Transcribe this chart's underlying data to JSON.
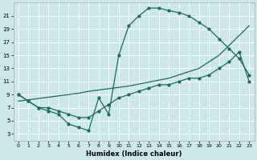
{
  "xlabel": "Humidex (Indice chaleur)",
  "bg_color": "#cce8e8",
  "grid_color": "#ffffff",
  "line_color": "#1a6b60",
  "xlim": [
    -0.5,
    23.5
  ],
  "ylim": [
    2,
    23
  ],
  "xticks": [
    0,
    1,
    2,
    3,
    4,
    5,
    6,
    7,
    8,
    9,
    10,
    11,
    12,
    13,
    14,
    15,
    16,
    17,
    18,
    19,
    20,
    21,
    22,
    23
  ],
  "yticks": [
    3,
    5,
    7,
    9,
    11,
    13,
    15,
    17,
    19,
    21
  ],
  "curve1_x": [
    0,
    1,
    2,
    3,
    4,
    5,
    6,
    7,
    8,
    9,
    10,
    11,
    12,
    13,
    14,
    15,
    16,
    17,
    18,
    19,
    20,
    21,
    22,
    23
  ],
  "curve1_y": [
    9,
    8,
    7,
    6.5,
    6,
    4.5,
    4,
    3.5,
    8.5,
    6,
    15,
    19.5,
    21,
    22.2,
    22.2,
    21.8,
    21.5,
    21,
    20,
    19,
    17.5,
    16,
    14.5,
    12
  ],
  "curve2_x": [
    0,
    1,
    2,
    3,
    4,
    5,
    6,
    7,
    8,
    9,
    10,
    11,
    12,
    13,
    14,
    15,
    16,
    17,
    18,
    19,
    20,
    21,
    22,
    23
  ],
  "curve2_y": [
    9,
    8,
    7,
    7,
    6.5,
    6,
    5.5,
    5.5,
    6.5,
    7.5,
    8.5,
    9,
    9.5,
    10,
    10.5,
    10.5,
    11,
    11.5,
    11.5,
    12,
    13,
    14,
    15.5,
    11
  ],
  "curve3_x": [
    0,
    1,
    2,
    3,
    4,
    5,
    6,
    7,
    8,
    9,
    10,
    11,
    12,
    13,
    14,
    15,
    16,
    17,
    18,
    19,
    20,
    21,
    22,
    23
  ],
  "curve3_y": [
    8,
    8.2,
    8.4,
    8.6,
    8.8,
    9,
    9.2,
    9.5,
    9.7,
    9.9,
    10.1,
    10.3,
    10.6,
    10.9,
    11.2,
    11.5,
    12,
    12.5,
    13,
    14,
    15,
    16.5,
    18,
    19.5
  ]
}
